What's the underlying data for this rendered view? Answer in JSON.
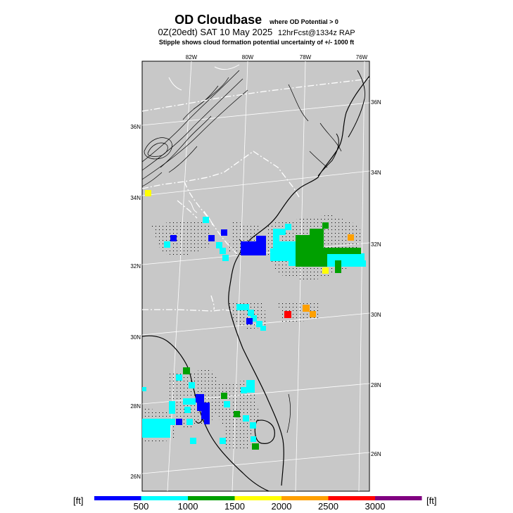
{
  "header": {
    "title": "OD Cloudbase",
    "title_sub": "where OD Potential > 0",
    "subtitle_time": "0Z(20edt) SAT 10 May 2025",
    "subtitle_forecast": "12hrFcst@1334z RAP",
    "note": "Stipple shows cloud formation potential uncertainty of +/- 1000 ft"
  },
  "map": {
    "background": "#c8c8c8",
    "top_lon_labels": [
      "82W",
      "80W",
      "78W",
      "76W"
    ],
    "left_lat_labels": [
      "36N",
      "34N",
      "32N",
      "30N",
      "28N",
      "26N"
    ],
    "right_lat_labels": [
      "36N",
      "34N",
      "32N",
      "30N",
      "28N",
      "26N"
    ]
  },
  "colorbar": {
    "unit_left": "[ft]",
    "unit_right": "[ft]",
    "tick_labels": [
      "500",
      "1000",
      "1500",
      "2000",
      "2500",
      "3000"
    ],
    "colors": [
      "#0000ff",
      "#00ffff",
      "#00a000",
      "#ffff00",
      "#ffa000",
      "#ff0000",
      "#800080"
    ],
    "color_names": [
      "blue",
      "cyan",
      "green",
      "yellow",
      "orange",
      "red",
      "purple"
    ]
  }
}
